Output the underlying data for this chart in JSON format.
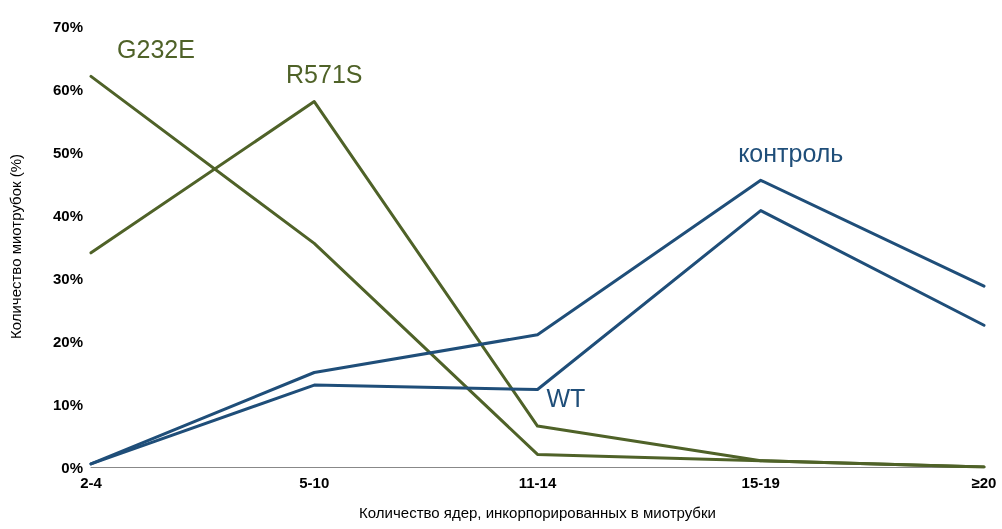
{
  "chart_data": {
    "type": "line",
    "xlabel": "Количество ядер, инкорпорированных в миотрубки",
    "ylabel": "Количество миотрубок (%)",
    "categories": [
      "2-4",
      "5-10",
      "11-14",
      "15-19",
      "≥20"
    ],
    "series": [
      {
        "name": "G232E",
        "color": "#4f6228",
        "values": [
          62,
          35.5,
          2,
          1,
          0
        ]
      },
      {
        "name": "R571S",
        "color": "#4f6228",
        "values": [
          34,
          58,
          6.5,
          1,
          0
        ]
      },
      {
        "name": "WT",
        "color": "#1f4e79",
        "values": [
          0.5,
          13,
          12.3,
          40.7,
          22.5
        ]
      },
      {
        "name": "контроль",
        "color": "#1f4e79",
        "values": [
          0.5,
          15,
          21,
          45.5,
          28.7
        ]
      }
    ],
    "ylim": [
      0,
      70
    ],
    "yticks": [
      {
        "value": 0,
        "label": "0%"
      },
      {
        "value": 10,
        "label": "10%"
      },
      {
        "value": 20,
        "label": "20%"
      },
      {
        "value": 30,
        "label": "30%"
      },
      {
        "value": 40,
        "label": "40%"
      },
      {
        "value": 50,
        "label": "50%"
      },
      {
        "value": 60,
        "label": "60%"
      },
      {
        "value": 70,
        "label": "70%"
      }
    ],
    "grid": false,
    "legend": false,
    "marker": "none",
    "line_style": "solid"
  }
}
